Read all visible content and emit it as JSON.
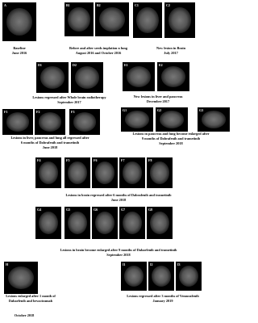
{
  "panels": [
    {
      "label": "A"
    },
    {
      "label": "B1"
    },
    {
      "label": "B2"
    },
    {
      "label": "C1"
    },
    {
      "label": "C2"
    },
    {
      "label": "D1"
    },
    {
      "label": "D2"
    },
    {
      "label": "E1"
    },
    {
      "label": "E2"
    },
    {
      "label": "F1"
    },
    {
      "label": "F2"
    },
    {
      "label": "F3"
    },
    {
      "label": "G1"
    },
    {
      "label": "G2"
    },
    {
      "label": "G3"
    },
    {
      "label": "F4"
    },
    {
      "label": "F5"
    },
    {
      "label": "F6"
    },
    {
      "label": "F7"
    },
    {
      "label": "F8"
    },
    {
      "label": "G4"
    },
    {
      "label": "G5"
    },
    {
      "label": "G6"
    },
    {
      "label": "G7"
    },
    {
      "label": "G8"
    },
    {
      "label": "H"
    },
    {
      "label": "I1"
    },
    {
      "label": "I2"
    },
    {
      "label": "I3"
    }
  ],
  "captions": [
    {
      "lines": [
        "Baseline",
        "June 2016"
      ]
    },
    {
      "lines": [
        "Before and after seeds implation n lung",
        "August 2016 and October 2016"
      ]
    },
    {
      "lines": [
        "New lesion in Brain",
        "July 2017"
      ]
    },
    {
      "lines": [
        "Lesions regressed after Whole brain radiotherapy",
        "September 2017"
      ]
    },
    {
      "lines": [
        "New lesions in liver and pancreas",
        "December 2017"
      ]
    },
    {
      "lines": [
        "Lesions in liver, pancreas and lung all regressed after",
        "6 months of Dabrafenib and trametinib",
        "June 2018"
      ]
    },
    {
      "lines": [
        "Lesions in pancreas and lung become enlarged after",
        "9 months of Dabrafenib and trametinib",
        "September 2018"
      ]
    },
    {
      "lines": [
        "Lesions in brain regressed after 6 months of Dabrafenib and trametinib",
        "June 2018"
      ]
    },
    {
      "lines": [
        "Lesions in brain become enlarged after 9 months of Dabarfenib and trametinib",
        "September 2018"
      ]
    },
    {
      "lines": [
        "Lesions enlarged after 1 month of",
        "Dabarfenib and bevacizumab"
      ]
    },
    {
      "lines": [
        "Lesions regressed after 3 months of Vemurafenib",
        "January 2019"
      ]
    },
    {
      "lines": [
        "October 2018"
      ]
    }
  ]
}
